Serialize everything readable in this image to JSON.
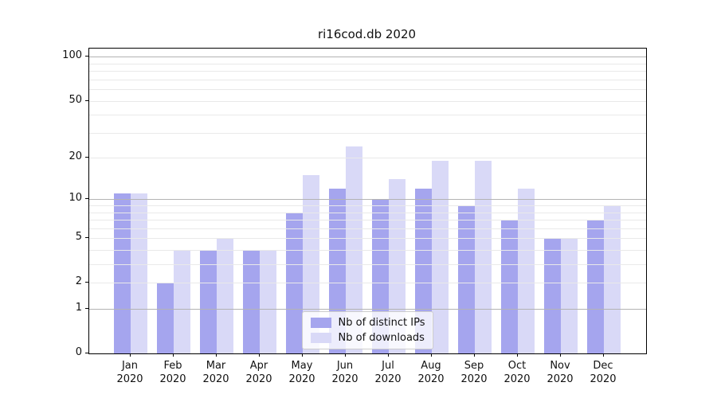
{
  "chart_data": {
    "type": "bar",
    "title": "ri16cod.db 2020",
    "categories": [
      {
        "month": "Jan",
        "year": "2020"
      },
      {
        "month": "Feb",
        "year": "2020"
      },
      {
        "month": "Mar",
        "year": "2020"
      },
      {
        "month": "Apr",
        "year": "2020"
      },
      {
        "month": "May",
        "year": "2020"
      },
      {
        "month": "Jun",
        "year": "2020"
      },
      {
        "month": "Jul",
        "year": "2020"
      },
      {
        "month": "Aug",
        "year": "2020"
      },
      {
        "month": "Sep",
        "year": "2020"
      },
      {
        "month": "Oct",
        "year": "2020"
      },
      {
        "month": "Nov",
        "year": "2020"
      },
      {
        "month": "Dec",
        "year": "2020"
      }
    ],
    "series": [
      {
        "name": "Nb of distinct IPs",
        "color": "#a5a5ee",
        "values": [
          11,
          2,
          4,
          4,
          8,
          12,
          10,
          12,
          9,
          7,
          5,
          7
        ]
      },
      {
        "name": "Nb of downloads",
        "color": "#d9d9f7",
        "values": [
          11,
          4,
          5,
          4,
          15,
          24,
          14,
          19,
          19,
          12,
          5,
          9
        ]
      }
    ],
    "yscale": "symlog-log1p",
    "ylim": [
      0,
      114
    ],
    "yticks": [
      100,
      50,
      20,
      10,
      5,
      2,
      1,
      0
    ],
    "major_gridlines": [
      1,
      10,
      100
    ],
    "minor_gridlines": [
      2,
      3,
      4,
      5,
      6,
      7,
      8,
      9,
      20,
      30,
      40,
      50,
      60,
      70,
      80,
      90
    ],
    "legend_position": "lower-center",
    "grid": "on",
    "colors": {
      "major_grid": "#b3b3b3",
      "minor_grid": "#e9e9e9",
      "spine": "#000000",
      "background": "#ffffff",
      "text": "#111111"
    }
  }
}
